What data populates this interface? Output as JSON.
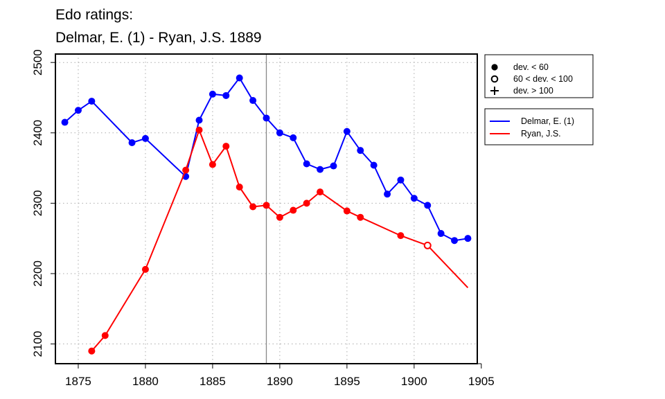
{
  "title_lines": [
    "Edo ratings:",
    "Delmar, E. (1) - Ryan, J.S. 1889"
  ],
  "chart_data": {
    "type": "line",
    "title": "Edo ratings:\nDelmar, E. (1) - Ryan, J.S. 1889",
    "xlabel": "",
    "ylabel": "",
    "xlim": [
      1873.3,
      1904.7
    ],
    "ylim": [
      2072,
      2512
    ],
    "x_ticks": [
      1875,
      1880,
      1885,
      1890,
      1895,
      1900,
      1905
    ],
    "y_ticks": [
      2100,
      2200,
      2300,
      2400,
      2500
    ],
    "grid": true,
    "grid_style": "dotted",
    "reference_line_x": 1889,
    "legend_placement": "outside-right",
    "series": [
      {
        "name": "Delmar, E. (1)",
        "color": "#0000ff",
        "points": [
          {
            "x": 1874,
            "y": 2415,
            "marker": "filled"
          },
          {
            "x": 1875,
            "y": 2432,
            "marker": "filled"
          },
          {
            "x": 1876,
            "y": 2445,
            "marker": "filled"
          },
          {
            "x": 1879,
            "y": 2386,
            "marker": "filled"
          },
          {
            "x": 1880,
            "y": 2392,
            "marker": "filled"
          },
          {
            "x": 1883,
            "y": 2338,
            "marker": "filled"
          },
          {
            "x": 1884,
            "y": 2418,
            "marker": "filled"
          },
          {
            "x": 1885,
            "y": 2455,
            "marker": "filled"
          },
          {
            "x": 1886,
            "y": 2453,
            "marker": "filled"
          },
          {
            "x": 1887,
            "y": 2478,
            "marker": "filled"
          },
          {
            "x": 1888,
            "y": 2446,
            "marker": "filled"
          },
          {
            "x": 1889,
            "y": 2421,
            "marker": "filled"
          },
          {
            "x": 1890,
            "y": 2400,
            "marker": "filled"
          },
          {
            "x": 1891,
            "y": 2393,
            "marker": "filled"
          },
          {
            "x": 1892,
            "y": 2356,
            "marker": "filled"
          },
          {
            "x": 1893,
            "y": 2348,
            "marker": "filled"
          },
          {
            "x": 1894,
            "y": 2353,
            "marker": "filled"
          },
          {
            "x": 1895,
            "y": 2402,
            "marker": "filled"
          },
          {
            "x": 1896,
            "y": 2375,
            "marker": "filled"
          },
          {
            "x": 1897,
            "y": 2354,
            "marker": "filled"
          },
          {
            "x": 1898,
            "y": 2313,
            "marker": "filled"
          },
          {
            "x": 1899,
            "y": 2333,
            "marker": "filled"
          },
          {
            "x": 1900,
            "y": 2307,
            "marker": "filled"
          },
          {
            "x": 1901,
            "y": 2297,
            "marker": "filled"
          },
          {
            "x": 1902,
            "y": 2257,
            "marker": "filled"
          },
          {
            "x": 1903,
            "y": 2247,
            "marker": "filled"
          },
          {
            "x": 1904,
            "y": 2250,
            "marker": "filled"
          }
        ]
      },
      {
        "name": "Ryan, J.S.",
        "color": "#ff0000",
        "points": [
          {
            "x": 1876,
            "y": 2090,
            "marker": "filled"
          },
          {
            "x": 1877,
            "y": 2112,
            "marker": "filled"
          },
          {
            "x": 1880,
            "y": 2206,
            "marker": "filled"
          },
          {
            "x": 1883,
            "y": 2347,
            "marker": "filled"
          },
          {
            "x": 1884,
            "y": 2404,
            "marker": "filled"
          },
          {
            "x": 1885,
            "y": 2355,
            "marker": "filled"
          },
          {
            "x": 1886,
            "y": 2381,
            "marker": "filled"
          },
          {
            "x": 1887,
            "y": 2323,
            "marker": "filled"
          },
          {
            "x": 1888,
            "y": 2295,
            "marker": "filled"
          },
          {
            "x": 1889,
            "y": 2297,
            "marker": "filled"
          },
          {
            "x": 1890,
            "y": 2280,
            "marker": "filled"
          },
          {
            "x": 1891,
            "y": 2290,
            "marker": "filled"
          },
          {
            "x": 1892,
            "y": 2300,
            "marker": "filled"
          },
          {
            "x": 1893,
            "y": 2316,
            "marker": "filled"
          },
          {
            "x": 1895,
            "y": 2289,
            "marker": "filled"
          },
          {
            "x": 1896,
            "y": 2280,
            "marker": "filled"
          },
          {
            "x": 1899,
            "y": 2254,
            "marker": "filled"
          },
          {
            "x": 1901,
            "y": 2240,
            "marker": "open"
          },
          {
            "x": 1904,
            "y": 2180,
            "marker": "none"
          }
        ]
      }
    ]
  },
  "marker_legend": [
    {
      "symbol": "filled",
      "label": "dev. < 60"
    },
    {
      "symbol": "open",
      "label": "60 < dev. < 100"
    },
    {
      "symbol": "plus",
      "label": "dev. > 100"
    }
  ],
  "series_legend": [
    {
      "label": "Delmar, E. (1)",
      "color": "#0000ff"
    },
    {
      "label": "Ryan, J.S.",
      "color": "#ff0000"
    }
  ]
}
